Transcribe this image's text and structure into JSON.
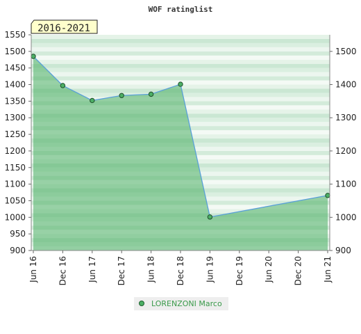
{
  "chart_data": {
    "type": "area",
    "title": "WOF ratinglist",
    "badge": "2016-2021",
    "x": [
      "Jun 16",
      "Dec 16",
      "Jun 17",
      "Dec 17",
      "Jun 18",
      "Dec 18",
      "Jun 19",
      "Dec 19",
      "Jun 20",
      "Dec 20",
      "Jun 21"
    ],
    "ylim": [
      900,
      1550
    ],
    "y_ticks_left": [
      900,
      950,
      1000,
      1050,
      1100,
      1150,
      1200,
      1250,
      1300,
      1350,
      1400,
      1450,
      1500,
      1550
    ],
    "y_ticks_right": [
      900,
      1000,
      1100,
      1200,
      1300,
      1400,
      1500
    ],
    "series": [
      {
        "name": "LORENZONI Marco",
        "color": "#5aa0d8",
        "fill": "#4caf65",
        "points": [
          {
            "x": "Jun 16",
            "y": 1485
          },
          {
            "x": "Dec 16",
            "y": 1397
          },
          {
            "x": "Jun 17",
            "y": 1352
          },
          {
            "x": "Dec 17",
            "y": 1367
          },
          {
            "x": "Jun 18",
            "y": 1371
          },
          {
            "x": "Dec 18",
            "y": 1401
          },
          {
            "x": "Jun 19",
            "y": 1001
          },
          {
            "x": "Jun 21",
            "y": 1066
          }
        ]
      }
    ],
    "grid": true,
    "legend_position": "bottom-center"
  }
}
